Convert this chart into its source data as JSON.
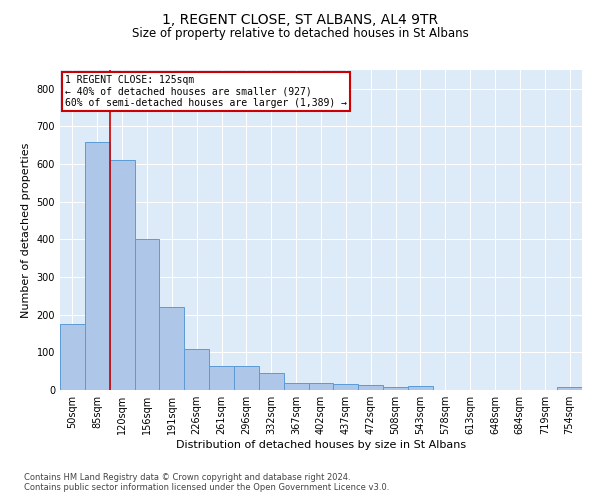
{
  "title": "1, REGENT CLOSE, ST ALBANS, AL4 9TR",
  "subtitle": "Size of property relative to detached houses in St Albans",
  "xlabel": "Distribution of detached houses by size in St Albans",
  "ylabel": "Number of detached properties",
  "footnote1": "Contains HM Land Registry data © Crown copyright and database right 2024.",
  "footnote2": "Contains public sector information licensed under the Open Government Licence v3.0.",
  "bar_labels": [
    "50sqm",
    "85sqm",
    "120sqm",
    "156sqm",
    "191sqm",
    "226sqm",
    "261sqm",
    "296sqm",
    "332sqm",
    "367sqm",
    "402sqm",
    "437sqm",
    "472sqm",
    "508sqm",
    "543sqm",
    "578sqm",
    "613sqm",
    "648sqm",
    "684sqm",
    "719sqm",
    "754sqm"
  ],
  "bar_values": [
    175,
    660,
    610,
    400,
    220,
    110,
    65,
    65,
    45,
    18,
    18,
    15,
    12,
    8,
    10,
    0,
    0,
    0,
    0,
    0,
    8
  ],
  "bar_color": "#aec6e8",
  "bar_edge_color": "#5b9bd5",
  "background_color": "#ddeaf7",
  "grid_color": "#ffffff",
  "ylim": [
    0,
    850
  ],
  "yticks": [
    0,
    100,
    200,
    300,
    400,
    500,
    600,
    700,
    800
  ],
  "annotation_box_text": "1 REGENT CLOSE: 125sqm\n← 40% of detached houses are smaller (927)\n60% of semi-detached houses are larger (1,389) →",
  "annotation_box_color": "#cc0000",
  "vline_color": "#cc0000",
  "title_fontsize": 10,
  "subtitle_fontsize": 8.5,
  "ylabel_fontsize": 8,
  "xlabel_fontsize": 8,
  "tick_fontsize": 7,
  "footnote_fontsize": 6,
  "ann_fontsize": 7
}
